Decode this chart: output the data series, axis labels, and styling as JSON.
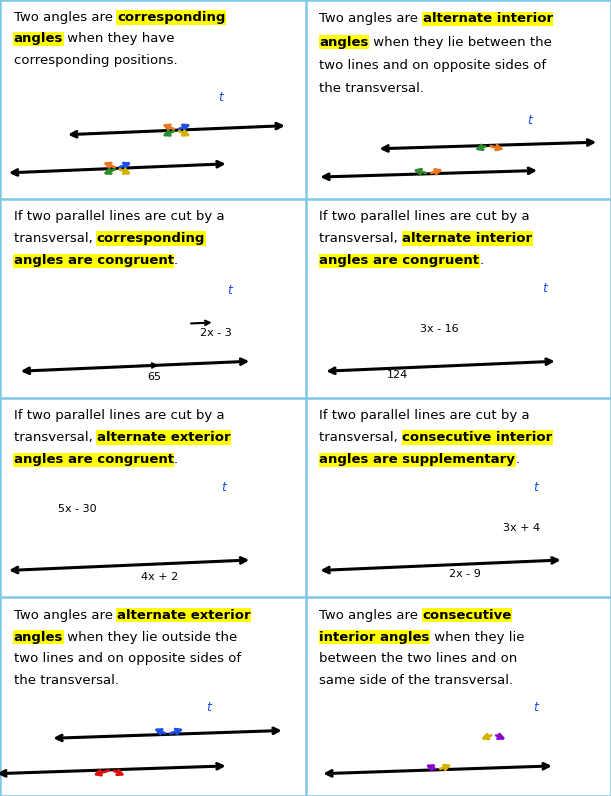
{
  "bg": "#ffffff",
  "border": "#7ec8e3",
  "yellow": "#ffff00",
  "black": "#000000",
  "blue": "#1e4de8",
  "orange": "#e87820",
  "green": "#2e8b2e",
  "gold": "#d4b000",
  "red": "#dd1111",
  "purple": "#8800cc",
  "panels": [
    {
      "id": "00",
      "row": 0,
      "col": 0,
      "lines": [
        [
          [
            "Two angles are ",
            false
          ],
          [
            "corresponding",
            true
          ]
        ],
        [
          [
            "angles",
            true
          ],
          [
            " when they have",
            false
          ]
        ],
        [
          [
            "corresponding positions.",
            false
          ]
        ]
      ],
      "diag": "corr_def"
    },
    {
      "id": "01",
      "row": 0,
      "col": 1,
      "lines": [
        [
          [
            "Two angles are ",
            false
          ],
          [
            "alternate interior",
            true
          ]
        ],
        [
          [
            "angles",
            true
          ],
          [
            " when they lie between the",
            false
          ]
        ],
        [
          [
            "two lines and on opposite sides of",
            false
          ]
        ],
        [
          [
            "the transversal.",
            false
          ]
        ]
      ],
      "diag": "alt_int_def"
    },
    {
      "id": "10",
      "row": 1,
      "col": 0,
      "lines": [
        [
          [
            "If two parallel lines are cut by a",
            false
          ]
        ],
        [
          [
            "transversal, ",
            false
          ],
          [
            "corresponding",
            true
          ]
        ],
        [
          [
            "angles are congruent",
            true
          ],
          [
            ".",
            false
          ]
        ]
      ],
      "diag": "corr_thm"
    },
    {
      "id": "11",
      "row": 1,
      "col": 1,
      "lines": [
        [
          [
            "If two parallel lines are cut by a",
            false
          ]
        ],
        [
          [
            "transversal, ",
            false
          ],
          [
            "alternate interior",
            true
          ]
        ],
        [
          [
            "angles are congruent",
            true
          ],
          [
            ".",
            false
          ]
        ]
      ],
      "diag": "alt_int_thm"
    },
    {
      "id": "20",
      "row": 2,
      "col": 0,
      "lines": [
        [
          [
            "If two parallel lines are cut by a",
            false
          ]
        ],
        [
          [
            "transversal, ",
            false
          ],
          [
            "alternate exterior",
            true
          ]
        ],
        [
          [
            "angles are congruent",
            true
          ],
          [
            ".",
            false
          ]
        ]
      ],
      "diag": "alt_ext_thm"
    },
    {
      "id": "21",
      "row": 2,
      "col": 1,
      "lines": [
        [
          [
            "If two parallel lines are cut by a",
            false
          ]
        ],
        [
          [
            "transversal, ",
            false
          ],
          [
            "consecutive interior",
            true
          ]
        ],
        [
          [
            "angles are supplementary",
            true
          ],
          [
            ".",
            false
          ]
        ]
      ],
      "diag": "consec_int_thm"
    },
    {
      "id": "30",
      "row": 3,
      "col": 0,
      "lines": [
        [
          [
            "Two angles are ",
            false
          ],
          [
            "alternate exterior",
            true
          ]
        ],
        [
          [
            "angles",
            true
          ],
          [
            " when they lie outside the",
            false
          ]
        ],
        [
          [
            "two lines and on opposite sides of",
            false
          ]
        ],
        [
          [
            "the transversal.",
            false
          ]
        ]
      ],
      "diag": "alt_ext_def"
    },
    {
      "id": "31",
      "row": 3,
      "col": 1,
      "lines": [
        [
          [
            "Two angles are ",
            false
          ],
          [
            "consecutive",
            true
          ]
        ],
        [
          [
            "interior angles",
            true
          ],
          [
            " when they lie",
            false
          ]
        ],
        [
          [
            "between the two lines and on",
            false
          ]
        ],
        [
          [
            "same side of the transversal.",
            false
          ]
        ]
      ],
      "diag": "consec_int_def"
    }
  ]
}
